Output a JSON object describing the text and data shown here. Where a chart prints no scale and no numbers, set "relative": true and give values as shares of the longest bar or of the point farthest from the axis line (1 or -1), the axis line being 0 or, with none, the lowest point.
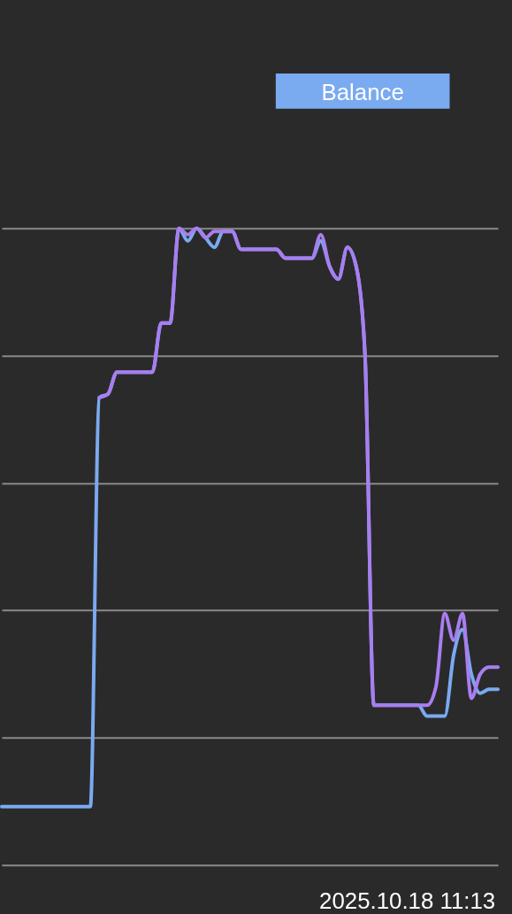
{
  "chart_data": {
    "type": "line",
    "relative": true,
    "grid": "y",
    "legend": false,
    "annotations": [
      "Balance",
      "2025.10.18 11:13"
    ],
    "categories": [
      null,
      null,
      null,
      null,
      null,
      null,
      null,
      null,
      null,
      null,
      null,
      null,
      null,
      null,
      null,
      null,
      null,
      null,
      null,
      null,
      null,
      null,
      null,
      null,
      null,
      null,
      null,
      null,
      null,
      null,
      null,
      null,
      null,
      null,
      null,
      null,
      null,
      null,
      null,
      null,
      null,
      null,
      null,
      null,
      null,
      null,
      null,
      null,
      null,
      null,
      null,
      null,
      null,
      null,
      null,
      null,
      null
    ],
    "series": [
      {
        "color": "#7aaaf0",
        "values": [
          0.092,
          0.092,
          0.092,
          0.092,
          0.092,
          0.092,
          0.092,
          0.092,
          0.092,
          0.092,
          0.092,
          0.734,
          0.74,
          0.774,
          0.774,
          0.774,
          0.774,
          0.774,
          0.851,
          0.851,
          1.0,
          0.98,
          1.0,
          0.985,
          0.97,
          0.995,
          0.995,
          0.967,
          0.967,
          0.967,
          0.967,
          0.967,
          0.953,
          0.953,
          0.953,
          0.953,
          0.98,
          0.94,
          0.92,
          0.97,
          0.94,
          0.8,
          0.251,
          0.251,
          0.251,
          0.251,
          0.251,
          0.251,
          0.234,
          0.234,
          0.234,
          0.33,
          0.37,
          0.3,
          0.27,
          0.276,
          0.276
        ]
      },
      {
        "color": "#a87ef0",
        "values": [
          null,
          null,
          null,
          null,
          null,
          null,
          null,
          null,
          null,
          null,
          null,
          0.734,
          0.74,
          0.774,
          0.774,
          0.774,
          0.774,
          0.774,
          0.851,
          0.851,
          1.0,
          0.99,
          1.0,
          0.985,
          0.995,
          0.995,
          0.995,
          0.967,
          0.967,
          0.967,
          0.967,
          0.967,
          0.953,
          0.953,
          0.953,
          0.953,
          0.99,
          0.94,
          0.92,
          0.97,
          0.94,
          0.8,
          0.251,
          0.251,
          0.251,
          0.251,
          0.251,
          0.251,
          0.251,
          0.28,
          0.395,
          0.353,
          0.395,
          0.262,
          0.3,
          0.311,
          0.311
        ]
      }
    ]
  }
}
